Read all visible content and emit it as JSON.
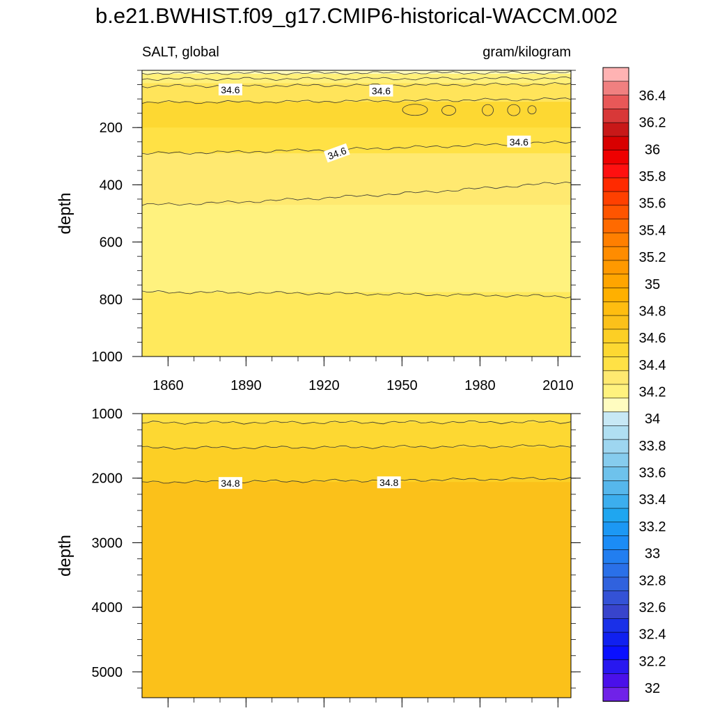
{
  "figure": {
    "title": "b.e21.BWHIST.f09_g17.CMIP6-historical-WACCM.002",
    "variable_label": "SALT, global",
    "units_label": "gram/kilogram"
  },
  "chart_data": [
    {
      "type": "contour",
      "panel": "upper",
      "xlabel": "",
      "ylabel": "depth",
      "xlim": [
        1850,
        2015
      ],
      "ylim": [
        1000,
        0
      ],
      "xticks": [
        1860,
        1890,
        1920,
        1950,
        1980,
        2010
      ],
      "xtick_labels": [
        "1860",
        "1890",
        "1920",
        "1950",
        "1980",
        "2010"
      ],
      "yticks": [
        200,
        400,
        600,
        800,
        1000
      ],
      "ytick_labels": [
        "200",
        "400",
        "600",
        "800",
        "1000"
      ],
      "fill_bands": [
        {
          "from_depth": 0,
          "to_depth": 12,
          "color": "#fffcc0",
          "value_range": "34.2-34.4"
        },
        {
          "from_depth": 12,
          "to_depth": 45,
          "color": "#fff07a",
          "value_range": "34.4-34.5"
        },
        {
          "from_depth": 45,
          "to_depth": 110,
          "color": "#ffe45a",
          "value_range": "34.5-34.6"
        },
        {
          "from_depth": 110,
          "to_depth": 200,
          "color": "#fdd832",
          "value_range": "34.6-34.7"
        },
        {
          "from_depth": 200,
          "to_depth": 290,
          "color": "#ffe145",
          "value_range": "34.5-34.6"
        },
        {
          "from_depth": 290,
          "to_depth": 470,
          "color": "#ffe970",
          "value_range": "34.4-34.5"
        },
        {
          "from_depth": 470,
          "to_depth": 775,
          "color": "#fff27e",
          "value_range": "34.3-34.4"
        },
        {
          "from_depth": 775,
          "to_depth": 1000,
          "color": "#ffe95c",
          "value_range": "34.4-34.5"
        }
      ],
      "contours": [
        {
          "depth_start": 10,
          "depth_end": 8
        },
        {
          "depth_start": 30,
          "depth_end": 28
        },
        {
          "depth_start": 55,
          "depth_end": 48
        },
        {
          "depth_start": 112,
          "depth_end": 100
        },
        {
          "depth_start": 290,
          "depth_end": 250
        },
        {
          "depth_start": 470,
          "depth_end": 390
        },
        {
          "depth_start": 775,
          "depth_end": 790
        }
      ],
      "contour_labels": [
        {
          "text": "34.6",
          "year": 1884,
          "depth": 68
        },
        {
          "text": "34.6",
          "year": 1942,
          "depth": 72
        },
        {
          "text": "34.6",
          "year": 1925,
          "depth": 290
        },
        {
          "text": "34.6",
          "year": 1995,
          "depth": 250
        }
      ]
    },
    {
      "type": "contour",
      "panel": "lower",
      "xlabel": "",
      "ylabel": "depth",
      "xlim": [
        1850,
        2015
      ],
      "ylim": [
        5400,
        1000
      ],
      "xticks": [
        1860,
        1890,
        1920,
        1950,
        1980,
        2010
      ],
      "yticks": [
        1000,
        2000,
        3000,
        4000,
        5000
      ],
      "ytick_labels": [
        "1000",
        "2000",
        "3000",
        "4000",
        "5000"
      ],
      "fill_bands": [
        {
          "from_depth": 1000,
          "to_depth": 1140,
          "color": "#ffe145",
          "value_range": "34.6-34.7"
        },
        {
          "from_depth": 1140,
          "to_depth": 1530,
          "color": "#fdd832",
          "value_range": "34.7-34.75"
        },
        {
          "from_depth": 1530,
          "to_depth": 2060,
          "color": "#fccf25",
          "value_range": "34.75-34.8"
        },
        {
          "from_depth": 2060,
          "to_depth": 5400,
          "color": "#fbc11a",
          "value_range": "34.8-34.9"
        }
      ],
      "contours": [
        {
          "depth_start": 1140,
          "depth_end": 1130
        },
        {
          "depth_start": 1530,
          "depth_end": 1500
        },
        {
          "depth_start": 2060,
          "depth_end": 2000
        }
      ],
      "contour_labels": [
        {
          "text": "34.8",
          "year": 1884,
          "depth": 2080
        },
        {
          "text": "34.8",
          "year": 1945,
          "depth": 2070
        }
      ]
    }
  ],
  "colorbar": {
    "labels": [
      "36.4",
      "36.2",
      "36",
      "35.8",
      "35.6",
      "35.4",
      "35.2",
      "35",
      "34.8",
      "34.6",
      "34.4",
      "34.2",
      "34",
      "33.8",
      "33.6",
      "33.4",
      "33.2",
      "33",
      "32.8",
      "32.6",
      "32.4",
      "32.2",
      "32"
    ],
    "colors": [
      "#ffb3b3",
      "#f08080",
      "#e85858",
      "#d83838",
      "#c81818",
      "#d80000",
      "#ee0000",
      "#ff1010",
      "#ff2a00",
      "#ff4000",
      "#ff5500",
      "#ff6a00",
      "#ff7f00",
      "#ff8c00",
      "#ff9900",
      "#ffa500",
      "#ffb000",
      "#ffbd10",
      "#fbc11a",
      "#fccf25",
      "#fdd832",
      "#ffe145",
      "#ffe970",
      "#fff27e",
      "#fffcc0",
      "#c7e8f5",
      "#b0dff2",
      "#9ed6f0",
      "#86ccee",
      "#6ec2ec",
      "#56b7ec",
      "#3caeee",
      "#1fa6f0",
      "#1c98f4",
      "#1b8cf6",
      "#227ef0",
      "#2a70e8",
      "#3062de",
      "#3452d6",
      "#3844cc",
      "#1a30e8",
      "#1020f0",
      "#0a10ff",
      "#2818f0",
      "#4a10ea",
      "#7022e8"
    ]
  }
}
